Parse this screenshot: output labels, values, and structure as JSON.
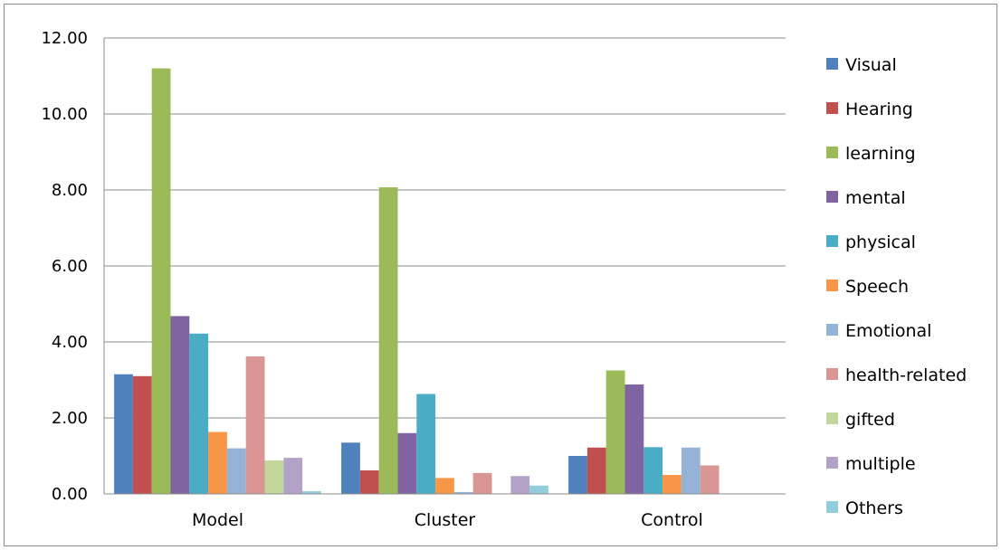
{
  "chart_data": {
    "type": "bar",
    "categories": [
      "Model",
      "Cluster",
      "Control"
    ],
    "ylim": [
      0,
      12
    ],
    "yticks": [
      "0.00",
      "2.00",
      "4.00",
      "6.00",
      "8.00",
      "10.00",
      "12.00"
    ],
    "grid": true,
    "legend_position": "right",
    "series": [
      {
        "name": "Visual",
        "color": "#4f81bd",
        "values": [
          3.15,
          1.35,
          1.0
        ]
      },
      {
        "name": "Hearing",
        "color": "#c0504d",
        "values": [
          3.1,
          0.62,
          1.22
        ]
      },
      {
        "name": "learning",
        "color": "#9bbb59",
        "values": [
          11.2,
          8.07,
          3.25
        ]
      },
      {
        "name": "mental",
        "color": "#8064a2",
        "values": [
          4.68,
          1.6,
          2.88
        ]
      },
      {
        "name": "physical",
        "color": "#4bacc6",
        "values": [
          4.22,
          2.63,
          1.23
        ]
      },
      {
        "name": "Speech",
        "color": "#f79646",
        "values": [
          1.63,
          0.42,
          0.5
        ]
      },
      {
        "name": "Emotional",
        "color": "#95b3d7",
        "values": [
          1.2,
          0.05,
          1.22
        ]
      },
      {
        "name": "health-related",
        "color": "#da9694",
        "values": [
          3.62,
          0.55,
          0.75
        ]
      },
      {
        "name": "gifted",
        "color": "#c3d69b",
        "values": [
          0.88,
          0.0,
          0.0
        ]
      },
      {
        "name": "multiple",
        "color": "#b3a2c7",
        "values": [
          0.95,
          0.47,
          0.0
        ]
      },
      {
        "name": "Others",
        "color": "#92cddc",
        "values": [
          0.07,
          0.22,
          0.0
        ]
      }
    ]
  }
}
